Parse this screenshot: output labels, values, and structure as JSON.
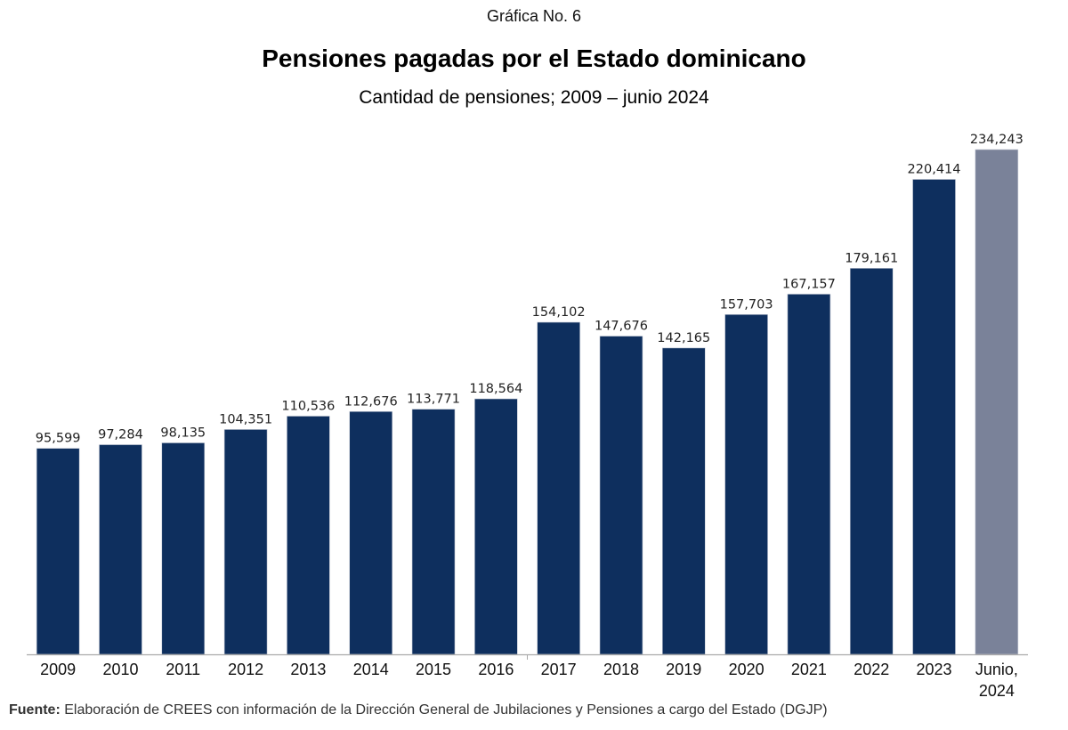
{
  "header": {
    "caption": "Gráfica No. 6",
    "title": "Pensiones pagadas por el Estado dominicano",
    "subtitle": "Cantidad de pensiones; 2009 – junio 2024"
  },
  "footer": {
    "source_label": "Fuente:",
    "source_text": " Elaboración de CREES con información de la Dirección General de Jubilaciones y Pensiones a cargo del Estado (DGJP)"
  },
  "colors": {
    "bar_primary": "#0e2f5e",
    "bar_highlight": "#7a8299",
    "axis": "#aaaaaa",
    "label": "#222222"
  },
  "chart_data": {
    "type": "bar",
    "title": "Pensiones pagadas por el Estado dominicano",
    "subtitle": "Cantidad de pensiones; 2009 – junio 2024",
    "xlabel": "",
    "ylabel": "",
    "ylim": [
      0,
      234243
    ],
    "grid": false,
    "legend": "none",
    "categories": [
      "2009",
      "2010",
      "2011",
      "2012",
      "2013",
      "2014",
      "2015",
      "2016",
      "2017",
      "2018",
      "2019",
      "2020",
      "2021",
      "2022",
      "2023",
      "Junio,\n2024"
    ],
    "values": [
      95599,
      97284,
      98135,
      104351,
      110536,
      112676,
      113771,
      118564,
      154102,
      147676,
      142165,
      157703,
      167157,
      179161,
      220414,
      234243
    ],
    "data_labels": [
      "95,599",
      "97,284",
      "98,135",
      "104,351",
      "110,536",
      "112,676",
      "113,771",
      "118,564",
      "154,102",
      "147,676",
      "142,165",
      "157,703",
      "167,157",
      "179,161",
      "220,414",
      "234,243"
    ],
    "highlight_index": 15
  }
}
